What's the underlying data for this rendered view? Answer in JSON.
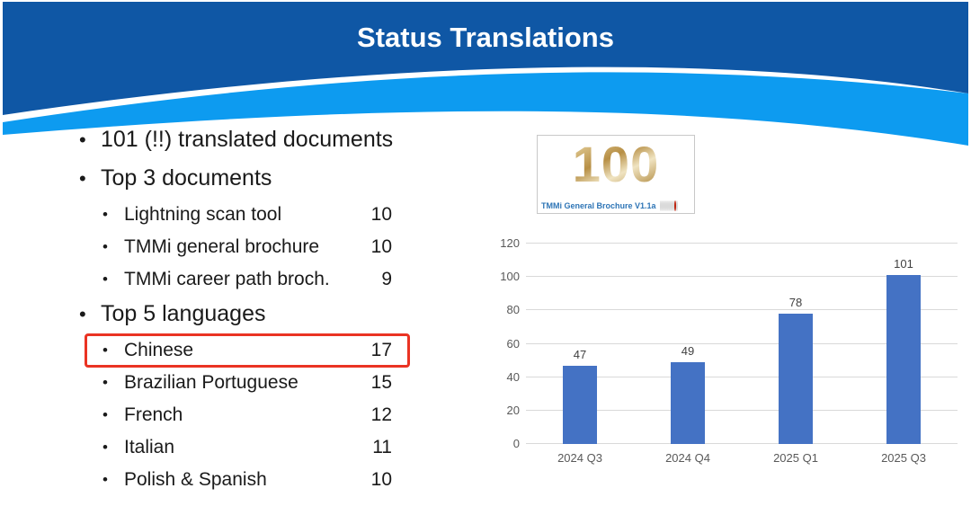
{
  "slide": {
    "title": "Status Translations"
  },
  "colors": {
    "header_dark_blue": "#0f57a5",
    "header_light_blue": "#0d9bf0",
    "bar_blue": "#4472c4",
    "highlight_red": "#ea3323",
    "caption_blue": "#2e75b6",
    "balloon_gold": "#c9a35f"
  },
  "bullets": {
    "item1": "101 (!!) translated documents",
    "top3_header": "Top 3 documents",
    "top3": [
      {
        "label": "Lightning scan tool",
        "count": "10"
      },
      {
        "label": "TMMi general brochure",
        "count": "10"
      },
      {
        "label": "TMMi career path broch.",
        "count": "9"
      }
    ],
    "top5_header": "Top 5 languages",
    "top5": [
      {
        "label": "Chinese",
        "count": "17"
      },
      {
        "label": "Brazilian Portuguese",
        "count": "15"
      },
      {
        "label": "French",
        "count": "12"
      },
      {
        "label": "Italian",
        "count": "11"
      },
      {
        "label": "Polish & Spanish",
        "count": "10"
      }
    ]
  },
  "badge": {
    "number": "100",
    "caption": "TMMi General Brochure V1.1a",
    "flags": [
      "brazil",
      "netherlands",
      "japan",
      "france",
      "germany",
      "italy",
      "uk",
      "poland",
      "china",
      "spain"
    ]
  },
  "chart_data": {
    "type": "bar",
    "categories": [
      "2024 Q3",
      "2024 Q4",
      "2025 Q1",
      "2025 Q3"
    ],
    "values": [
      47,
      49,
      78,
      101
    ],
    "data_labels": [
      "47",
      "49",
      "78",
      "101"
    ],
    "title": "",
    "xlabel": "",
    "ylabel": "",
    "ylim": [
      0,
      120
    ],
    "yticks": [
      0,
      20,
      40,
      60,
      80,
      100,
      120
    ],
    "grid": true,
    "legend": false,
    "bar_color": "#4472c4"
  }
}
